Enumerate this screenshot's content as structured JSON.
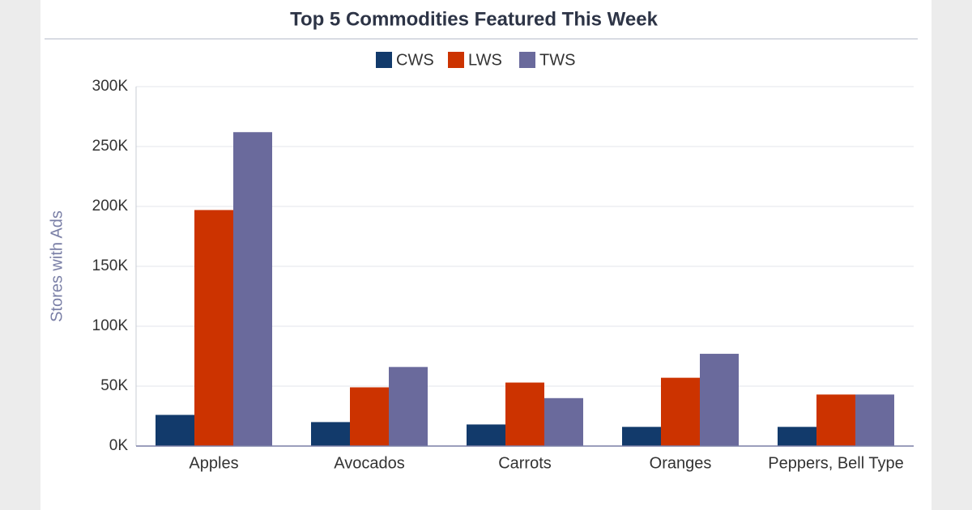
{
  "chart_data": {
    "type": "bar",
    "title": "Top 5 Commodities Featured This Week",
    "y_label": "Stores with Ads",
    "categories": [
      "Apples",
      "Avocados",
      "Carrots",
      "Oranges",
      "Peppers, Bell Type"
    ],
    "series": [
      {
        "name": "CWS",
        "color": "#123a6b",
        "values": [
          26000,
          20000,
          18000,
          16000,
          16000
        ]
      },
      {
        "name": "LWS",
        "color": "#cc3300",
        "values": [
          197000,
          49000,
          53000,
          57000,
          43000
        ]
      },
      {
        "name": "TWS",
        "color": "#6a6a9c",
        "values": [
          262000,
          66000,
          40000,
          77000,
          43000
        ]
      }
    ],
    "ylim": [
      0,
      300000
    ],
    "yticks": [
      {
        "value": 0,
        "label": "0K"
      },
      {
        "value": 50000,
        "label": "50K"
      },
      {
        "value": 100000,
        "label": "100K"
      },
      {
        "value": 150000,
        "label": "150K"
      },
      {
        "value": 200000,
        "label": "200K"
      },
      {
        "value": 250000,
        "label": "250K"
      },
      {
        "value": 300000,
        "label": "300K"
      }
    ],
    "grid": true
  }
}
